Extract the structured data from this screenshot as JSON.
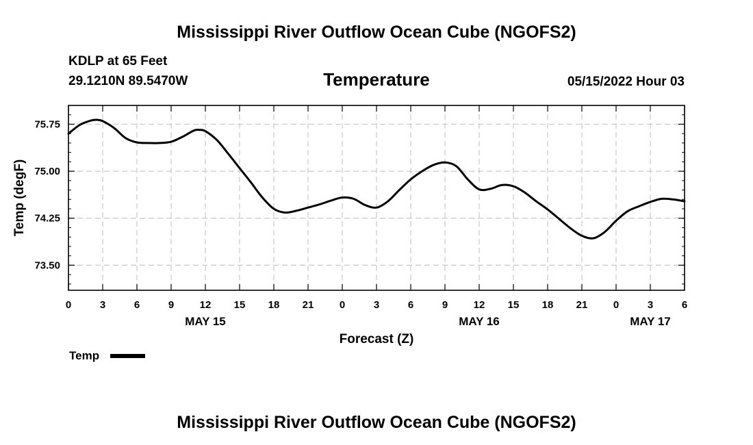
{
  "header": {
    "title": "Mississippi River Outflow Ocean Cube (NGOFS2)",
    "station": "KDLP at 65 Feet",
    "location": "29.1210N  89.5470W",
    "variable": "Temperature",
    "issued": "05/15/2022 Hour 03"
  },
  "footer": {
    "title": "Mississippi River Outflow Ocean Cube (NGOFS2)"
  },
  "legend": {
    "label": "Temp"
  },
  "chart_data": {
    "type": "line",
    "title": "Temperature",
    "xlabel": "Forecast (Z)",
    "ylabel": "Temp (degF)",
    "grid": true,
    "legend_position": "bottom-left",
    "xlim": [
      0,
      54
    ],
    "ylim": [
      73.1,
      76.05
    ],
    "x_ticks": [
      0,
      3,
      6,
      9,
      12,
      15,
      18,
      21,
      24,
      27,
      30,
      33,
      36,
      39,
      42,
      45,
      48,
      51,
      54
    ],
    "x_tick_labels": [
      "0",
      "3",
      "6",
      "9",
      "12",
      "15",
      "18",
      "21",
      "0",
      "3",
      "6",
      "9",
      "12",
      "15",
      "18",
      "21",
      "0",
      "3",
      "6"
    ],
    "date_labels": [
      {
        "x": 12,
        "label": "MAY 15"
      },
      {
        "x": 36,
        "label": "MAY 16"
      },
      {
        "x": 51,
        "label": "MAY 17"
      }
    ],
    "y_ticks": [
      73.5,
      74.25,
      75.0,
      75.75
    ],
    "y_tick_labels": [
      "73.50",
      "74.25",
      "75.00",
      "75.75"
    ],
    "y_minor_step": 0.15,
    "series": [
      {
        "name": "Temp",
        "color": "#000000",
        "x": [
          0,
          1,
          2,
          2.5,
          3,
          4,
          5,
          6,
          7,
          8,
          9,
          10,
          11,
          11.5,
          12,
          13,
          14,
          15,
          16,
          17,
          18,
          19,
          20,
          21,
          22,
          23,
          24,
          25,
          26,
          27,
          28,
          29,
          30,
          31,
          32,
          33,
          34,
          35,
          36,
          37,
          38,
          39,
          40,
          41,
          42,
          43,
          44,
          45,
          46,
          47,
          48,
          49,
          50,
          51,
          52,
          53,
          54
        ],
        "values": [
          75.6,
          75.74,
          75.81,
          75.82,
          75.8,
          75.69,
          75.53,
          75.46,
          75.45,
          75.45,
          75.47,
          75.55,
          75.65,
          75.66,
          75.64,
          75.5,
          75.28,
          75.05,
          74.82,
          74.58,
          74.4,
          74.34,
          74.37,
          74.42,
          74.47,
          74.53,
          74.58,
          74.56,
          74.46,
          74.42,
          74.52,
          74.7,
          74.87,
          75.0,
          75.1,
          75.14,
          75.08,
          74.87,
          74.71,
          74.72,
          74.78,
          74.76,
          74.66,
          74.52,
          74.39,
          74.24,
          74.09,
          73.97,
          73.93,
          74.03,
          74.21,
          74.36,
          74.44,
          74.51,
          74.56,
          74.55,
          74.52
        ]
      }
    ]
  }
}
